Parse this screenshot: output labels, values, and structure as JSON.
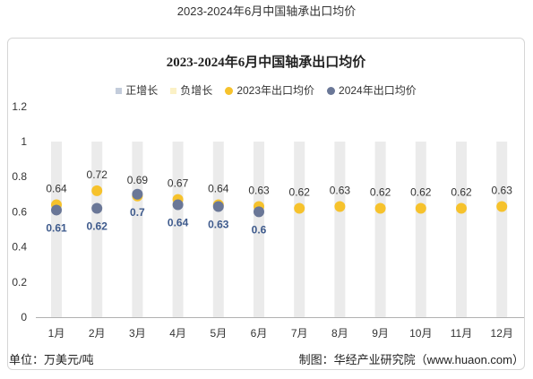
{
  "header": {
    "title": "2023-2024年6月中国轴承出口均价"
  },
  "chart_data": {
    "type": "scatter",
    "title": "2023-2024年6月中国轴承出口均价",
    "xlabel": "",
    "ylabel": "",
    "categories": [
      "1月",
      "2月",
      "3月",
      "4月",
      "5月",
      "6月",
      "7月",
      "8月",
      "9月",
      "10月",
      "11月",
      "12月"
    ],
    "series": [
      {
        "name": "2023年出口均价",
        "marker": "circle",
        "color": "#F6C22C",
        "label_color": "#333333",
        "values": [
          0.64,
          0.72,
          0.69,
          0.67,
          0.64,
          0.63,
          0.62,
          0.63,
          0.62,
          0.62,
          0.62,
          0.63
        ]
      },
      {
        "name": "2024年出口均价",
        "marker": "circle",
        "color": "#6A7797",
        "label_color": "#3E5A8C",
        "values": [
          0.61,
          0.62,
          0.7,
          0.64,
          0.63,
          0.6,
          null,
          null,
          null,
          null,
          null,
          null
        ]
      }
    ],
    "growth_legend": [
      {
        "label": "正增长",
        "marker": "square",
        "color": "#C3CCDB"
      },
      {
        "label": "负增长",
        "marker": "square",
        "color": "#FBF1C6"
      }
    ],
    "background_columns": {
      "value": 1,
      "color": "#EBEBEB"
    },
    "yticks": [
      0,
      0.2,
      0.4,
      0.6,
      0.8,
      1,
      1.2
    ],
    "ylim": [
      0,
      1.2
    ],
    "legend_position": "top",
    "grid": false
  },
  "footer": {
    "unit": "单位：万美元/吨",
    "source": "制图：华经产业研究院（www.huaon.com）"
  }
}
